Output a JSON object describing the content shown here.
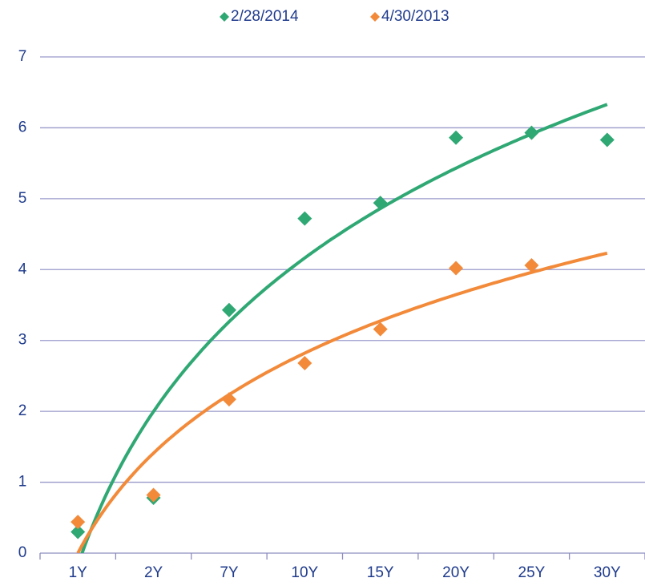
{
  "chart_data": {
    "type": "scatter",
    "categories": [
      "1Y",
      "2Y",
      "7Y",
      "10Y",
      "15Y",
      "20Y",
      "25Y",
      "30Y"
    ],
    "series": [
      {
        "name": "2/28/2014",
        "color": "#2fa874",
        "values": [
          0.3,
          0.78,
          3.43,
          4.72,
          4.94,
          5.86,
          5.93,
          5.83
        ]
      },
      {
        "name": "4/30/2013",
        "color": "#f28a3a",
        "values": [
          0.44,
          0.82,
          2.17,
          2.68,
          3.16,
          4.02,
          4.06,
          null
        ]
      }
    ],
    "trendline": "logarithmic",
    "ylim": [
      0,
      7
    ],
    "yticks": [
      0,
      1,
      2,
      3,
      4,
      5,
      6,
      7
    ],
    "grid": true,
    "legend": "top"
  }
}
